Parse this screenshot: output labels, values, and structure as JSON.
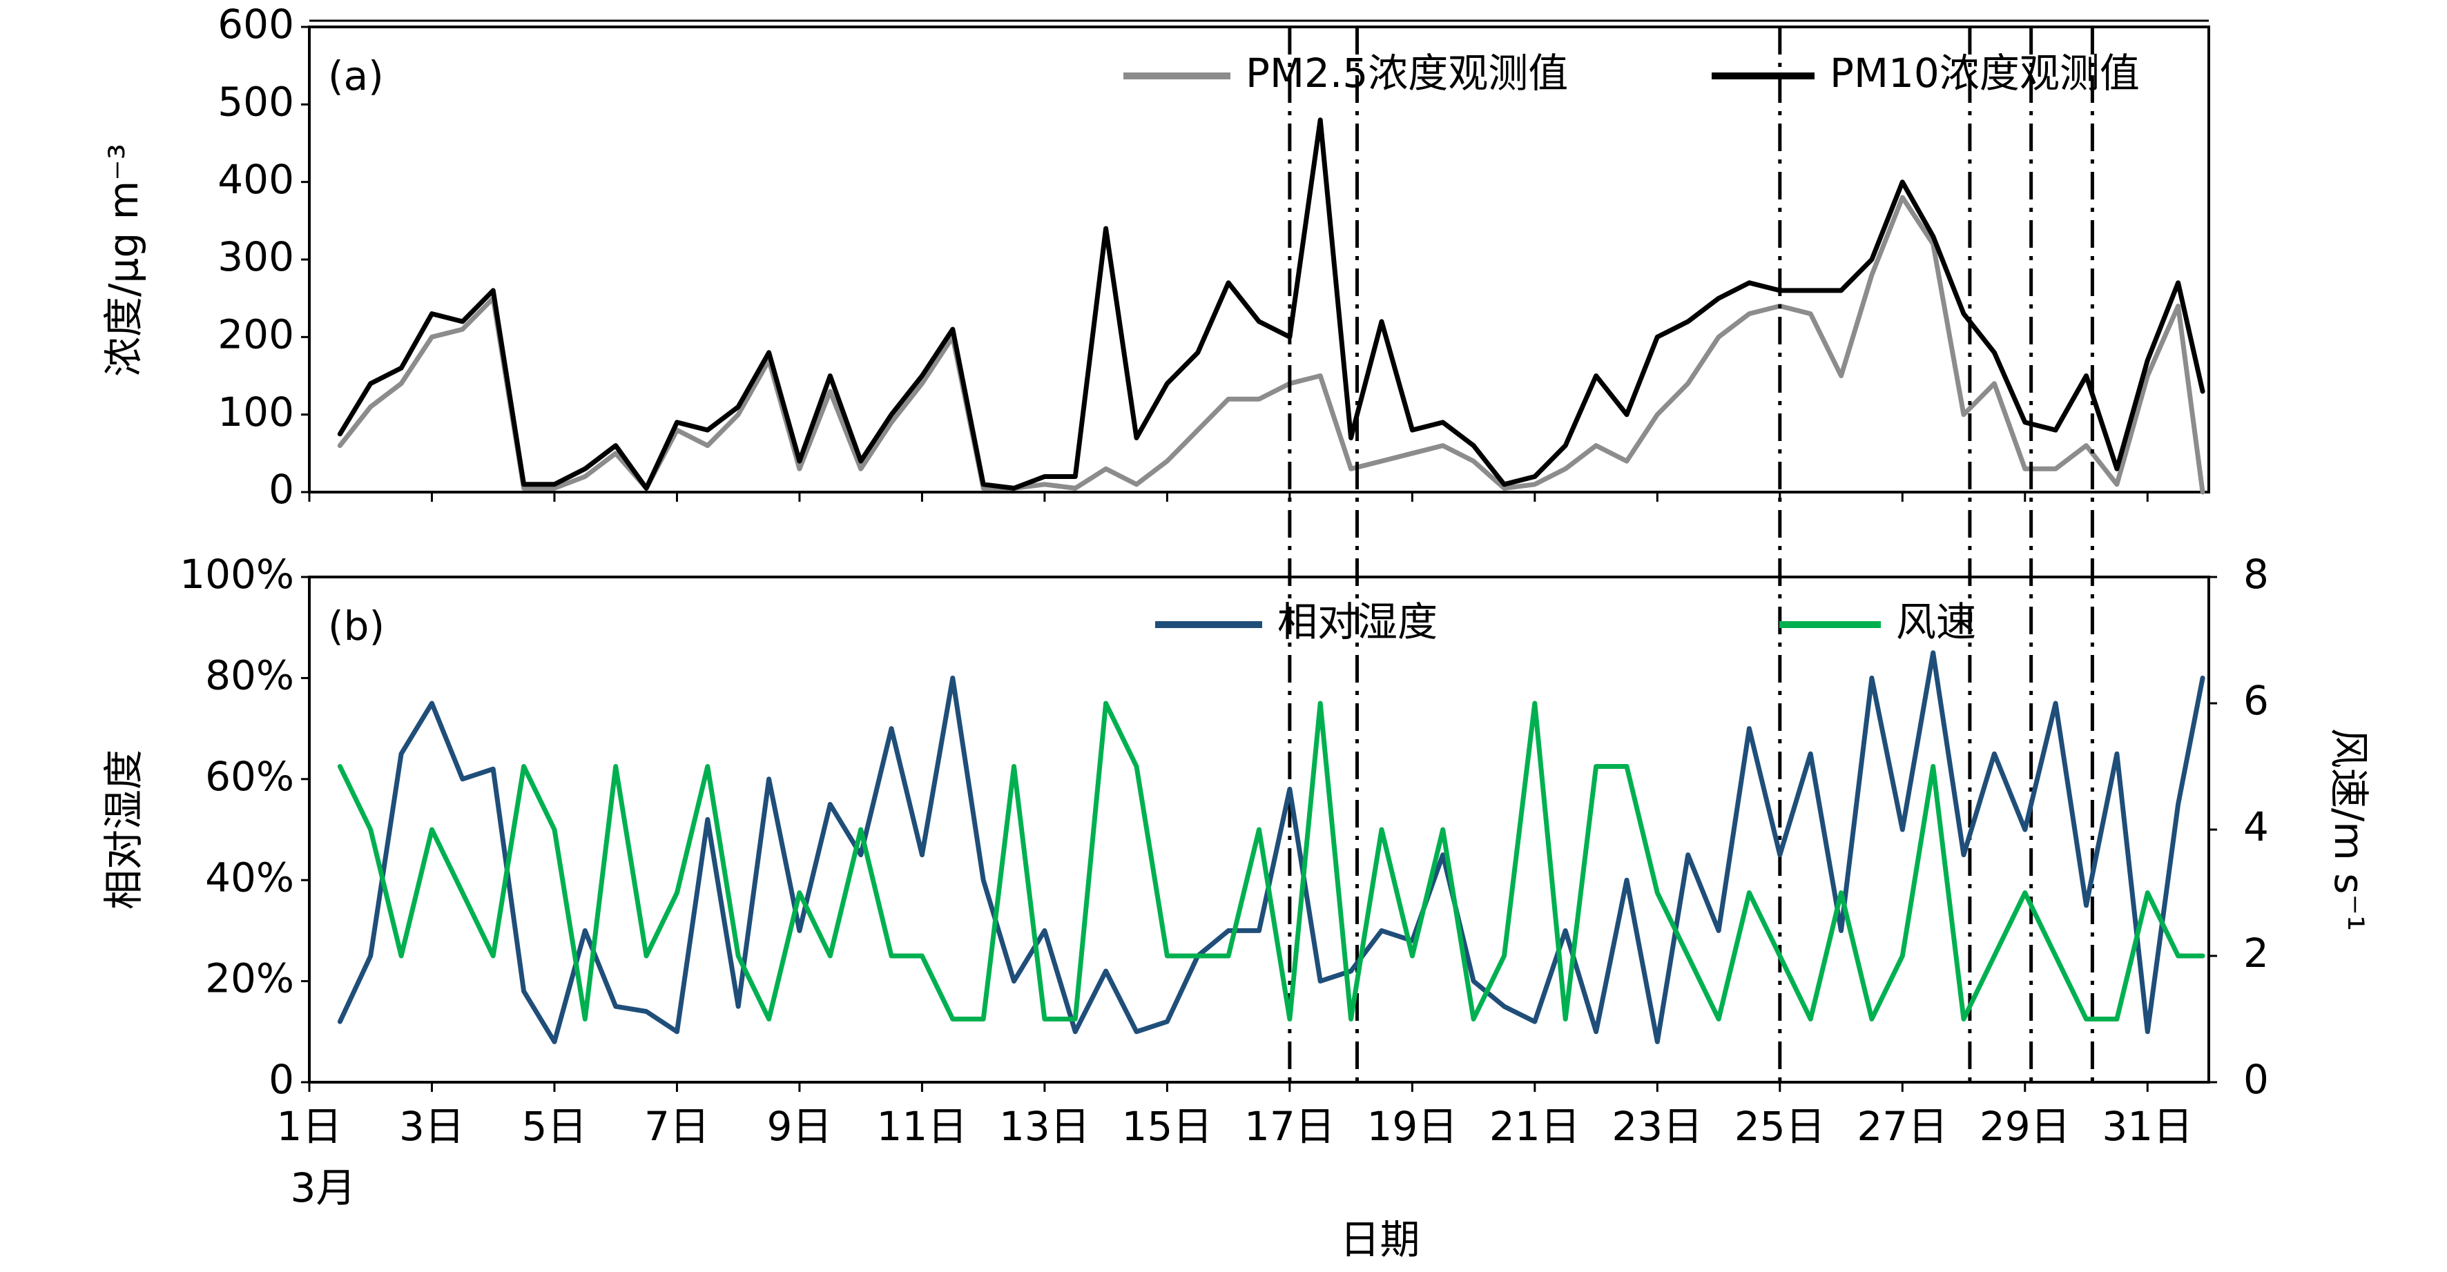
{
  "chart_data": [
    {
      "type": "line",
      "panel_label": "(a)",
      "ylabel": "浓度/μg m⁻³",
      "x": [
        1.5,
        2,
        2.5,
        3,
        3.5,
        4,
        4.5,
        5,
        5.5,
        6,
        6.5,
        7,
        7.5,
        8,
        8.5,
        9,
        9.5,
        10,
        10.5,
        11,
        11.5,
        12,
        12.5,
        13,
        13.5,
        14,
        14.5,
        15,
        15.5,
        16,
        16.5,
        17,
        17.5,
        18,
        18.5,
        19,
        19.5,
        20,
        20.5,
        21,
        21.5,
        22,
        22.5,
        23,
        23.5,
        24,
        24.5,
        25,
        25.5,
        26,
        26.5,
        27,
        27.5,
        28,
        28.5,
        29,
        29.5,
        30,
        30.5,
        31,
        31.5,
        31.9
      ],
      "series": [
        {
          "name": "PM2.5浓度观测值",
          "color": "#8c8c8c",
          "values": [
            60,
            110,
            140,
            200,
            210,
            250,
            5,
            5,
            20,
            50,
            5,
            80,
            60,
            100,
            170,
            30,
            130,
            30,
            90,
            140,
            200,
            5,
            5,
            10,
            5,
            30,
            10,
            40,
            80,
            120,
            120,
            140,
            150,
            30,
            40,
            50,
            60,
            40,
            5,
            10,
            30,
            60,
            40,
            100,
            140,
            200,
            230,
            240,
            230,
            150,
            280,
            380,
            320,
            100,
            140,
            30,
            30,
            60,
            10,
            150,
            240,
            0
          ]
        },
        {
          "name": "PM10浓度观测值",
          "color": "#000000",
          "values": [
            75,
            140,
            160,
            230,
            220,
            260,
            10,
            10,
            30,
            60,
            5,
            90,
            80,
            110,
            180,
            40,
            150,
            40,
            100,
            150,
            210,
            10,
            5,
            20,
            20,
            340,
            70,
            140,
            180,
            270,
            220,
            200,
            480,
            70,
            220,
            80,
            90,
            60,
            10,
            20,
            60,
            150,
            100,
            200,
            220,
            250,
            270,
            260,
            260,
            260,
            300,
            400,
            330,
            230,
            180,
            90,
            80,
            150,
            30,
            170,
            270,
            130
          ]
        }
      ],
      "xlim": [
        1,
        32
      ],
      "xticks": [
        1,
        3,
        5,
        7,
        9,
        11,
        13,
        15,
        17,
        19,
        21,
        23,
        25,
        27,
        29,
        31
      ],
      "ylim": [
        0,
        600
      ],
      "yticks": [
        0,
        100,
        200,
        300,
        400,
        500,
        600
      ],
      "event_lines": [
        17,
        18.1,
        25,
        28.1,
        29.1,
        30.1
      ]
    },
    {
      "type": "line",
      "panel_label": "(b)",
      "ylabel": "相对湿度",
      "y2label": "风速/m s⁻¹",
      "xlabel": "日期",
      "x_sublabel": "3月",
      "x": [
        1.5,
        2,
        2.5,
        3,
        3.5,
        4,
        4.5,
        5,
        5.5,
        6,
        6.5,
        7,
        7.5,
        8,
        8.5,
        9,
        9.5,
        10,
        10.5,
        11,
        11.5,
        12,
        12.5,
        13,
        13.5,
        14,
        14.5,
        15,
        15.5,
        16,
        16.5,
        17,
        17.5,
        18,
        18.5,
        19,
        19.5,
        20,
        20.5,
        21,
        21.5,
        22,
        22.5,
        23,
        23.5,
        24,
        24.5,
        25,
        25.5,
        26,
        26.5,
        27,
        27.5,
        28,
        28.5,
        29,
        29.5,
        30,
        30.5,
        31,
        31.5,
        31.9
      ],
      "series": [
        {
          "name": "相对湿度",
          "color": "#1f4e79",
          "axis": "y",
          "values": [
            12,
            25,
            65,
            75,
            60,
            62,
            18,
            8,
            30,
            15,
            14,
            10,
            52,
            15,
            60,
            30,
            55,
            45,
            70,
            45,
            80,
            40,
            20,
            30,
            10,
            22,
            10,
            12,
            25,
            30,
            30,
            58,
            20,
            22,
            30,
            28,
            45,
            20,
            15,
            12,
            30,
            10,
            40,
            8,
            45,
            30,
            70,
            45,
            65,
            30,
            80,
            50,
            85,
            45,
            65,
            50,
            75,
            35,
            65,
            10,
            55,
            80
          ]
        },
        {
          "name": "风速",
          "color": "#00b050",
          "axis": "y2",
          "values": [
            5,
            4,
            2,
            4,
            3,
            2,
            5,
            4,
            1,
            5,
            2,
            3,
            5,
            2,
            1,
            3,
            2,
            4,
            2,
            2,
            1,
            1,
            5,
            1,
            1,
            6,
            5,
            2,
            2,
            2,
            4,
            1,
            6,
            1,
            4,
            2,
            4,
            1,
            2,
            6,
            1,
            5,
            5,
            3,
            2,
            1,
            3,
            2,
            1,
            3,
            1,
            2,
            5,
            1,
            2,
            3,
            2,
            1,
            1,
            3,
            2,
            2
          ]
        }
      ],
      "xlim": [
        1,
        32
      ],
      "xticks": [
        {
          "value": 1,
          "label": "1日"
        },
        {
          "value": 3,
          "label": "3日"
        },
        {
          "value": 5,
          "label": "5日"
        },
        {
          "value": 7,
          "label": "7日"
        },
        {
          "value": 9,
          "label": "9日"
        },
        {
          "value": 11,
          "label": "11日"
        },
        {
          "value": 13,
          "label": "13日"
        },
        {
          "value": 15,
          "label": "15日"
        },
        {
          "value": 17,
          "label": "17日"
        },
        {
          "value": 19,
          "label": "19日"
        },
        {
          "value": 21,
          "label": "21日"
        },
        {
          "value": 23,
          "label": "23日"
        },
        {
          "value": 25,
          "label": "25日"
        },
        {
          "value": 27,
          "label": "27日"
        },
        {
          "value": 29,
          "label": "29日"
        },
        {
          "value": 31,
          "label": "31日"
        }
      ],
      "ylim": [
        0,
        100
      ],
      "yticks": [
        0,
        {
          "value": 20,
          "label": "20%"
        },
        {
          "value": 40,
          "label": "40%"
        },
        {
          "value": 60,
          "label": "60%"
        },
        {
          "value": 80,
          "label": "80%"
        },
        {
          "value": 100,
          "label": "100%"
        }
      ],
      "y2lim": [
        0,
        8
      ],
      "y2ticks": [
        0,
        2,
        4,
        6,
        8
      ]
    }
  ]
}
